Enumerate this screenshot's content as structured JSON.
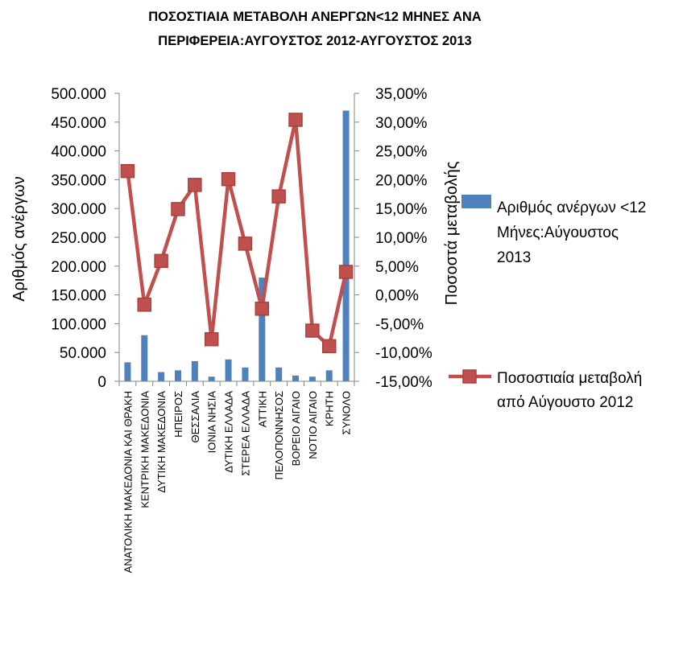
{
  "chart_data": {
    "type": "bar+line",
    "title": [
      "ΠΟΣΟΣΤΙΑΙΑ ΜΕΤΑΒΟΛΗ  ΑΝΕΡΓΩΝ<12 ΜΗΝΕΣ ΑΝΑ",
      "ΠΕΡΙΦΕΡΕΙΑ:ΑΥΓΟΥΣΤΟΣ 2012-ΑΥΓΟΥΣΤΟΣ 2013"
    ],
    "ylabel_left": "Αριθμός ανέργων",
    "ylabel_right": "Ποσοστά μεταβολής",
    "y_left_ticks": [
      "0",
      "50.000",
      "100.000",
      "150.000",
      "200.000",
      "250.000",
      "300.000",
      "350.000",
      "400.000",
      "450.000",
      "500.000"
    ],
    "y_right_ticks": [
      "-15,00%",
      "-10,00%",
      "-5,00%",
      "0,00%",
      "5,00%",
      "10,00%",
      "15,00%",
      "20,00%",
      "25,00%",
      "30,00%",
      "35,00%"
    ],
    "ylim_left": [
      0,
      500000
    ],
    "ylim_right": [
      -15,
      35
    ],
    "categories": [
      "ΑΝΑΤΟΛΙΚΗ ΜΑΚΕΔΟΝΙΑ ΚΑΙ ΘΡΑΚΗ",
      "ΚΕΝΤΡΙΚΗ ΜΑΚΕΔΟΝΙΑ",
      "ΔΥΤΙΚΗ ΜΑΚΕΔΟΝΙΑ",
      "ΗΠΕΙΡΟΣ",
      "ΘΕΣΣΑΛΙΑ",
      "ΙΟΝΙΑ ΝΗΣΙΑ",
      "ΔΥΤΙΚΗ ΕΛΛΑΔΑ",
      "ΣΤΕΡΕΑ ΕΛΛΑΔΑ",
      "ΑΤΤΙΚΗ",
      "ΠΕΛΟΠΟΝΝΗΣΟΣ",
      "ΒΟΡΕΙΟ ΑΙΓΑΙΟ",
      "ΝΟΤΙΟ ΑΙΓΑΙΟ",
      "ΚΡΗΤΗ",
      "ΣΥΝΟΛΟ"
    ],
    "series": [
      {
        "name": "Αριθμός ανέργων <12 Μήνες:Αύγουστος 2013",
        "legend_lines": [
          "Αριθμός ανέργων <12",
          "Μήνες:Αύγουστος",
          "2013"
        ],
        "type": "bar",
        "axis": "left",
        "color": "#4f81bd",
        "values": [
          33000,
          80000,
          16000,
          19000,
          35000,
          8000,
          38000,
          24000,
          180000,
          24000,
          10000,
          8000,
          19000,
          470000
        ]
      },
      {
        "name": "Ποσοστιαία μεταβολή από Αύγουστο 2012",
        "legend_lines": [
          "Ποσοστιαία μεταβολή",
          "από Αύγουστο 2012"
        ],
        "type": "line",
        "axis": "right",
        "color": "#c0504d",
        "values": [
          21.5,
          -1.7,
          5.9,
          14.9,
          19.1,
          -7.7,
          20.1,
          8.9,
          -2.4,
          17.1,
          30.4,
          -6.2,
          -8.9,
          4.0
        ]
      }
    ],
    "grid": false,
    "legend_position": "right"
  }
}
